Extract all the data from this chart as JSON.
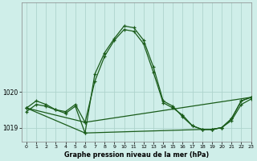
{
  "title": "Graphe pression niveau de la mer (hPa)",
  "bg_color": "#cfeee9",
  "line_color": "#1a5c1a",
  "grid_color": "#aed4cd",
  "xlim": [
    -0.5,
    23
  ],
  "ylim": [
    1018.6,
    1022.5
  ],
  "yticks": [
    1019,
    1020
  ],
  "ytick_labels": [
    "1019",
    "1020"
  ],
  "xticks": [
    0,
    1,
    2,
    3,
    4,
    5,
    6,
    7,
    8,
    9,
    10,
    11,
    12,
    13,
    14,
    15,
    16,
    17,
    18,
    19,
    20,
    21,
    22,
    23
  ],
  "figsize": [
    3.2,
    2.0
  ],
  "dpi": 100,
  "series1": {
    "x": [
      0,
      1,
      2,
      3,
      4,
      5,
      6,
      7,
      8,
      9,
      10,
      11,
      12,
      13,
      14,
      15,
      16,
      17,
      18,
      19,
      20,
      21,
      22,
      23
    ],
    "y": [
      1019.45,
      1019.65,
      1019.6,
      1019.5,
      1019.45,
      1019.65,
      1019.15,
      1020.3,
      1021.0,
      1021.45,
      1021.75,
      1021.7,
      1021.35,
      1020.55,
      1019.7,
      1019.55,
      1019.35,
      1019.05,
      1018.95,
      1018.95,
      1019.0,
      1019.25,
      1019.75,
      1019.85
    ]
  },
  "series2": {
    "x": [
      0,
      1,
      2,
      3,
      4,
      5,
      6,
      7,
      8,
      9,
      10,
      11,
      12,
      13,
      14,
      15,
      16,
      17,
      18,
      19,
      20,
      21,
      22,
      23
    ],
    "y": [
      1019.55,
      1019.75,
      1019.65,
      1019.5,
      1019.4,
      1019.6,
      1018.85,
      1020.5,
      1021.1,
      1021.5,
      1021.85,
      1021.8,
      1021.45,
      1020.7,
      1019.75,
      1019.6,
      1019.3,
      1019.05,
      1018.95,
      1018.95,
      1019.0,
      1019.2,
      1019.65,
      1019.8
    ]
  },
  "series3": {
    "x": [
      0,
      6,
      23
    ],
    "y": [
      1019.55,
      1019.15,
      1019.85
    ]
  },
  "series4": {
    "x": [
      0,
      6,
      18,
      19,
      20,
      21,
      22,
      23
    ],
    "y": [
      1019.55,
      1018.85,
      1018.95,
      1018.95,
      1019.0,
      1019.25,
      1019.75,
      1019.85
    ]
  }
}
